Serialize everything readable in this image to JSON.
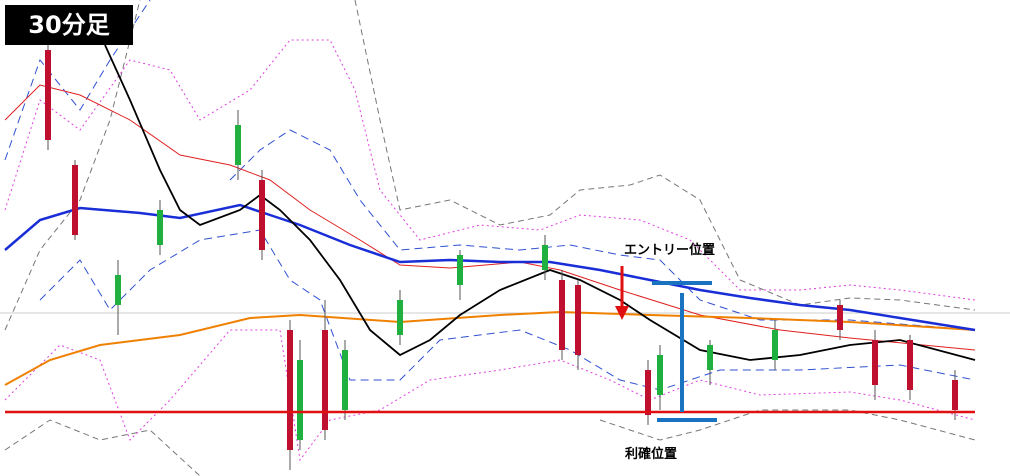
{
  "header": {
    "title": "30分足"
  },
  "annotations": {
    "entry": "エントリー位置",
    "take_profit": "利確位置"
  }
}
